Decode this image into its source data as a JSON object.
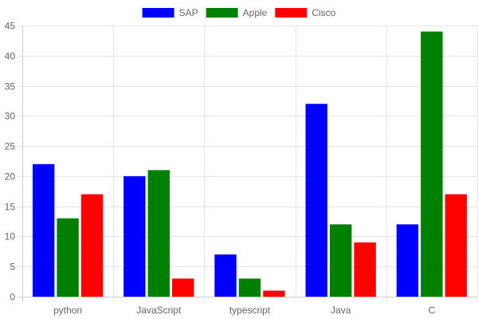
{
  "chart_data": {
    "type": "bar",
    "categories": [
      "python",
      "JavaScript",
      "typescript",
      "Java",
      "C"
    ],
    "series": [
      {
        "name": "SAP",
        "color": "#0000ff",
        "values": [
          22,
          20,
          7,
          32,
          12
        ]
      },
      {
        "name": "Apple",
        "color": "#008000",
        "values": [
          13,
          21,
          3,
          12,
          44
        ]
      },
      {
        "name": "Cisco",
        "color": "#ff0000",
        "values": [
          17,
          3,
          1,
          9,
          17
        ]
      }
    ],
    "title": "",
    "xlabel": "",
    "ylabel": "",
    "ylim": [
      0,
      45
    ],
    "ytick_step": 5,
    "grid": true,
    "legend_position": "top-center"
  }
}
